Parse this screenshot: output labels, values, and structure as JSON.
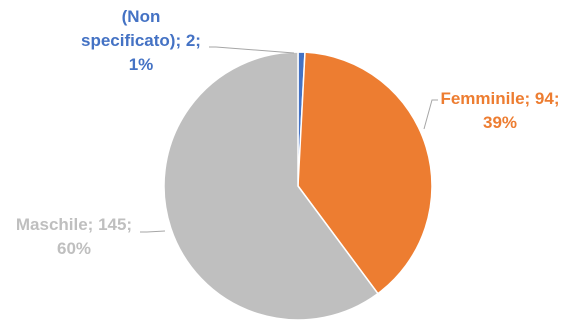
{
  "chart_data": {
    "type": "pie",
    "title": "",
    "legend": "none",
    "slices": [
      {
        "label": "(Non specificato)",
        "value": 2,
        "percent": "1%",
        "color": "#4472C4",
        "text_lines": [
          "(Non",
          "specificato); 2;",
          "1%"
        ]
      },
      {
        "label": "Femminile",
        "value": 94,
        "percent": "39%",
        "color": "#ED7D31",
        "text_lines": [
          "Femminile; 94;",
          "39%"
        ]
      },
      {
        "label": "Maschile",
        "value": 145,
        "percent": "60%",
        "color": "#BFBFBF",
        "text_lines": [
          "Maschile; 145;",
          "60%"
        ]
      }
    ]
  }
}
